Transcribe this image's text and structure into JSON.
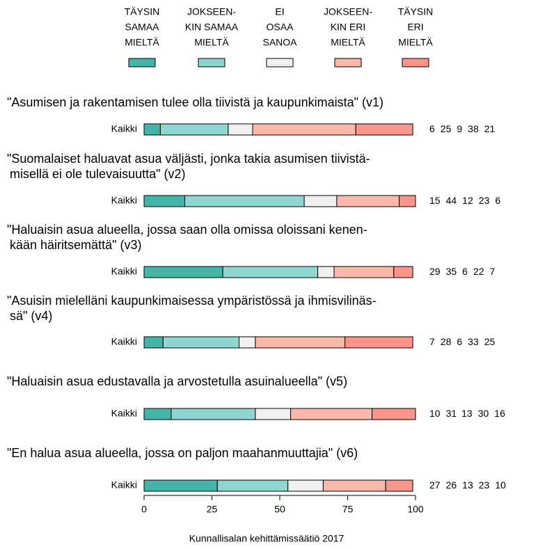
{
  "chart_data": {
    "type": "stacked_bar",
    "orientation": "horizontal",
    "questions": [
      [
        "\"Asumisen ja rakentamisen tulee olla tiivistä ja kaupunkimaista\" (v1)"
      ],
      [
        "\"Suomalaiset haluavat asua väljästi, jonka takia asumisen tiivistä-",
        "misellä ei ole tulevaisuutta\" (v2)"
      ],
      [
        "\"Haluaisin asua alueella, jossa saan olla omissa oloissani kenen-",
        "kään häiritsemättä\" (v3)"
      ],
      [
        "\"Asuisin mielelläni kaupunkimaisessa ympäristössä ja ihmisvilinäs-",
        "sä\" (v4)"
      ],
      [
        "\"Haluaisin asua edustavalla ja arvostetulla asuinalueella\" (v5)"
      ],
      [
        "\"En halua asua alueella, jossa on paljon maahanmuuttajia\" (v6)"
      ]
    ],
    "categories": [
      "Kaikki",
      "Kaikki",
      "Kaikki",
      "Kaikki",
      "Kaikki",
      "Kaikki"
    ],
    "series": [
      {
        "name": [
          "TÄYSIN",
          "SAMAA",
          "MIELTÄ"
        ],
        "color": "#45b5a9",
        "values": [
          6,
          15,
          29,
          7,
          10,
          27
        ]
      },
      {
        "name": [
          "JOKSEEN-",
          "KIN SAMAA",
          "MIELTÄ"
        ],
        "color": "#8fd6d0",
        "values": [
          25,
          44,
          35,
          28,
          31,
          26
        ]
      },
      {
        "name": [
          "EI",
          "OSAA",
          "SANOA"
        ],
        "color": "#f0f0f0",
        "values": [
          9,
          12,
          6,
          6,
          13,
          13
        ]
      },
      {
        "name": [
          "JOKSEEN-",
          "KIN ERI",
          "MIELTÄ"
        ],
        "color": "#fbb9ab",
        "values": [
          38,
          23,
          22,
          33,
          30,
          23
        ]
      },
      {
        "name": [
          "TÄYSIN",
          "ERI",
          "MIELTÄ"
        ],
        "color": "#f9958a",
        "values": [
          21,
          6,
          7,
          25,
          16,
          10
        ]
      }
    ],
    "xlim": [
      0,
      100
    ],
    "xticks": [
      0,
      25,
      50,
      75,
      100
    ],
    "legend": "top",
    "source": "Kunnallisalan kehittämissäätiö 2017"
  }
}
